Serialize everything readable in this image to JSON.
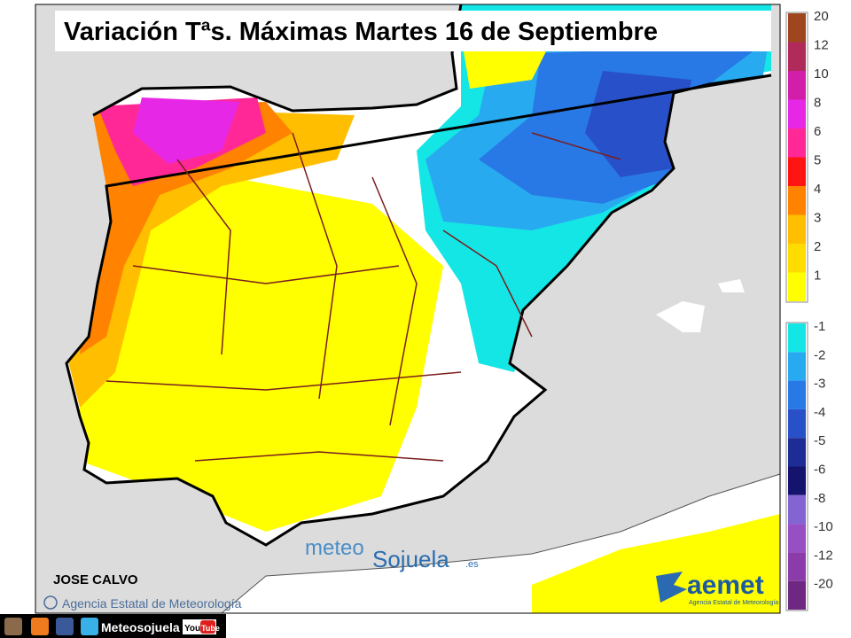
{
  "header": {
    "title": "Variación Tªs. Máximas Martes 16 de Septiembre"
  },
  "legend": {
    "high": [
      {
        "value": 20,
        "color": "#a0461e"
      },
      {
        "value": 12,
        "color": "#b02a5a"
      },
      {
        "value": 10,
        "color": "#d21ea8"
      },
      {
        "value": 8,
        "color": "#e628e6"
      },
      {
        "value": 6,
        "color": "#ff2896"
      },
      {
        "value": 5,
        "color": "#ff1414"
      },
      {
        "value": 4,
        "color": "#ff8200"
      },
      {
        "value": 3,
        "color": "#ffbe00"
      },
      {
        "value": 2,
        "color": "#ffdc00"
      },
      {
        "value": 1,
        "color": "#ffff00"
      }
    ],
    "low": [
      {
        "value": -1,
        "color": "#14e6e6"
      },
      {
        "value": -2,
        "color": "#28aaf0"
      },
      {
        "value": -3,
        "color": "#2878e6"
      },
      {
        "value": -4,
        "color": "#2850c8"
      },
      {
        "value": -5,
        "color": "#1e2d96"
      },
      {
        "value": -6,
        "color": "#14146e"
      },
      {
        "value": -8,
        "color": "#8264d2"
      },
      {
        "value": -10,
        "color": "#9650c3"
      },
      {
        "value": -12,
        "color": "#8c3caa"
      },
      {
        "value": -20,
        "color": "#6e2882"
      }
    ]
  },
  "credits": {
    "author": "JOSE CALVO",
    "copyright": "Agencia Estatal de Meteorología",
    "logo_meteo": "meteo",
    "logo_sojuela": "Sojuela",
    "logo_domain": ".es",
    "aemet": "aemet",
    "aemet_sub": "Agencia Estatal de Meteorología"
  },
  "footer": {
    "social": "Meteosojuela",
    "youtube_you": "You",
    "youtube_tube": "Tube"
  }
}
